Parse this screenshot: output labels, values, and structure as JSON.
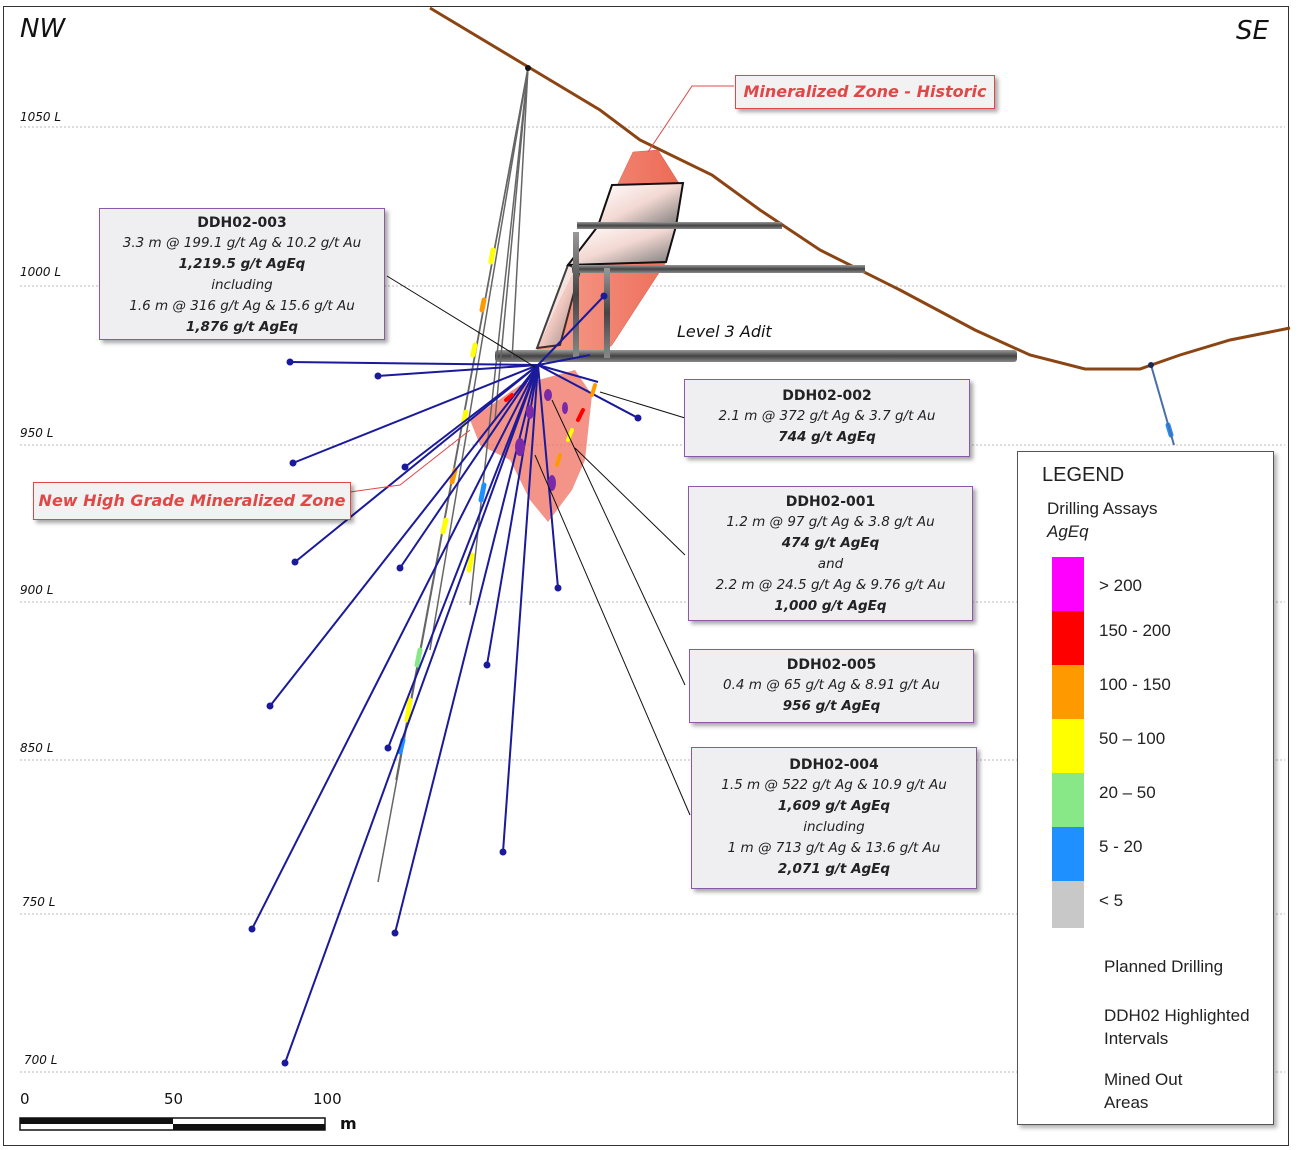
{
  "directions": {
    "left": "NW",
    "right": "SE"
  },
  "levels": [
    "1050 L",
    "1000 L",
    "950 L",
    "900 L",
    "850 L",
    "750 L",
    "700 L"
  ],
  "zones": {
    "historic": "Mineralized Zone - Historic",
    "new": "New High Grade Mineralized Zone",
    "adit": "Level 3 Adit"
  },
  "callouts": {
    "ddh02_003": {
      "title": "DDH02-003",
      "l1": "3.3 m @ 199.1 g/t Ag & 10.2 g/t Au",
      "l2": "1,219.5 g/t AgEq",
      "l3": "including",
      "l4": "1.6 m @ 316 g/t Ag & 15.6 g/t Au",
      "l5": "1,876 g/t AgEq"
    },
    "ddh02_002": {
      "title": "DDH02-002",
      "l1": "2.1 m @ 372 g/t Ag & 3.7 g/t Au",
      "l2": "744 g/t AgEq"
    },
    "ddh02_001": {
      "title": "DDH02-001",
      "l1": "1.2 m @ 97 g/t Ag & 3.8 g/t Au",
      "l2": "474 g/t AgEq",
      "l3": "and",
      "l4": "2.2 m @ 24.5 g/t Ag & 9.76 g/t Au",
      "l5": "1,000 g/t AgEq"
    },
    "ddh02_005": {
      "title": "DDH02-005",
      "l1": "0.4 m @ 65 g/t Ag & 8.91 g/t Au",
      "l2": "956 g/t AgEq"
    },
    "ddh02_004": {
      "title": "DDH02-004",
      "l1": "1.5 m @ 522 g/t Ag & 10.9 g/t Au",
      "l2": "1,609 g/t AgEq",
      "l3": "including",
      "l4": "1 m @ 713 g/t Ag & 13.6 g/t Au",
      "l5": "2,071 g/t AgEq"
    }
  },
  "legend": {
    "title": "LEGEND",
    "subtitle": "Drilling Assays",
    "unit": "AgEq",
    "ranges": [
      {
        "label": "> 200",
        "color": "#ff00ff"
      },
      {
        "label": "150 - 200",
        "color": "#ff0000"
      },
      {
        "label": "100 - 150",
        "color": "#ff9900"
      },
      {
        "label": "50 – 100",
        "color": "#ffff00"
      },
      {
        "label": "20 – 50",
        "color": "#88e888"
      },
      {
        "label": "5 - 20",
        "color": "#1e90ff"
      },
      {
        "label": "< 5",
        "color": "#c8c8c8"
      }
    ],
    "planned": "Planned Drilling",
    "highlighted_1": "DDH02 Highlighted",
    "highlighted_2": "Intervals",
    "mined_1": "Mined Out",
    "mined_2": "Areas"
  },
  "scale": {
    "ticks": [
      "0",
      "50",
      "100"
    ],
    "unit": "m"
  },
  "colors": {
    "topo": "#8b4513",
    "drill": "#1a1a9a",
    "zone": "#f07060",
    "highlight": "#7a2aa8"
  }
}
